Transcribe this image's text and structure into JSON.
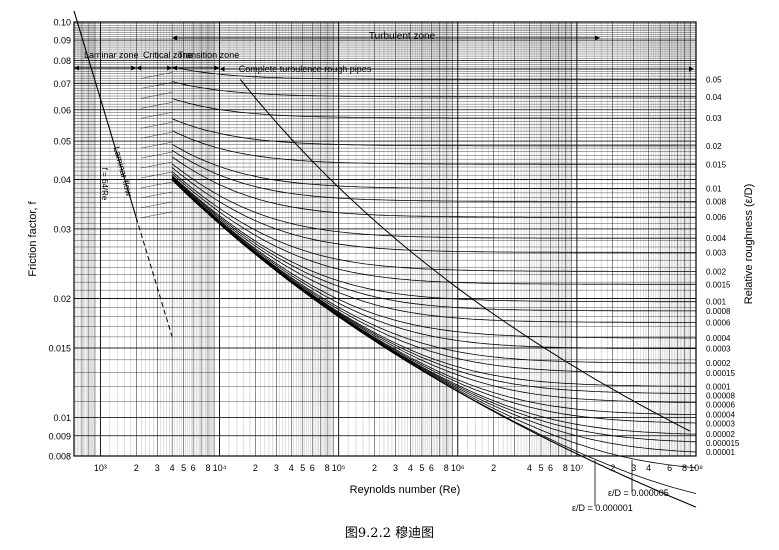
{
  "caption": "图9.2.2 穆迪图",
  "chart_data": {
    "type": "line",
    "title": "",
    "xlabel": "Reynolds number (Re)",
    "ylabel": "Friction factor, f",
    "y2label": "Relative roughness (ε/D)",
    "xscale": "log",
    "yscale": "log",
    "xlim": [
      600,
      100000000
    ],
    "ylim": [
      0.008,
      0.1
    ],
    "grid": true,
    "x_tick_labels": [
      "10³",
      "2",
      "3",
      "4",
      "5",
      "6",
      "8",
      "10⁴",
      "2",
      "3",
      "4",
      "5",
      "6",
      "8",
      "10⁵",
      "2",
      "3",
      "4",
      "5",
      "6",
      "8",
      "10⁶",
      "2",
      "4",
      "5",
      "6",
      "8",
      "10⁷",
      "2",
      "3",
      "4",
      "6",
      "8",
      "10⁸"
    ],
    "y_tick_labels": [
      "0.10",
      "0.09",
      "0.08",
      "0.07",
      "0.06",
      "0.05",
      "0.04",
      "0.03",
      "0.02",
      "0.015",
      "0.01",
      "0.009",
      "0.008"
    ],
    "y_ticks": [
      0.1,
      0.09,
      0.08,
      0.07,
      0.06,
      0.05,
      0.04,
      0.03,
      0.02,
      0.015,
      0.01,
      0.009,
      0.008
    ],
    "roughness_labels": [
      "0.05",
      "0.04",
      "0.03",
      "0.02",
      "0.015",
      "0.01",
      "0.008",
      "0.006",
      "0.004",
      "0.003",
      "0.002",
      "0.0015",
      "0.001",
      "0.0008",
      "0.0006",
      "0.0004",
      "0.0003",
      "0.0002",
      "0.00015",
      "0.0001",
      "0.00008",
      "0.00006",
      "0.00004",
      "0.00003",
      "0.00002",
      "0.000015",
      "0.00001"
    ],
    "roughness_values": [
      0.05,
      0.04,
      0.03,
      0.02,
      0.015,
      0.01,
      0.008,
      0.006,
      0.004,
      0.003,
      0.002,
      0.0015,
      0.001,
      0.0008,
      0.0006,
      0.0004,
      0.0003,
      0.0002,
      0.00015,
      0.0001,
      8e-05,
      6e-05,
      4e-05,
      3e-05,
      2e-05,
      1.5e-05,
      1e-05,
      5e-06,
      1e-06
    ],
    "extra_roughness_curves": [
      "ε/D = 0.000005",
      "ε/D = 0.000001"
    ],
    "zones": {
      "laminar": "Laminar zone",
      "critical": "Critical zone",
      "transition": "Transition zone",
      "turbulent": "Turbulent zone",
      "rough": "Complete turbulence rough pipes"
    },
    "laminar_line": {
      "label": "Laminar flow",
      "formula": "f = 64/Re",
      "coefficient": 64,
      "x_range": [
        600,
        4000
      ]
    },
    "zone_bounds": {
      "laminar_end": 2000,
      "critical_end": 4000,
      "transition_end": 10000
    }
  }
}
